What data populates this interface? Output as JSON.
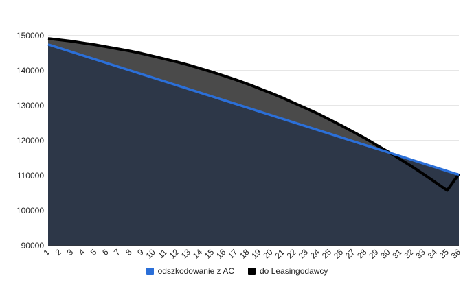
{
  "chart_data": {
    "type": "area",
    "title": "",
    "xlabel": "",
    "ylabel": "",
    "ylim": [
      90000,
      150000
    ],
    "yticks": [
      "90000",
      "100000",
      "110000",
      "120000",
      "130000",
      "140000",
      "150000"
    ],
    "x": [
      1,
      2,
      3,
      4,
      5,
      6,
      7,
      8,
      9,
      10,
      11,
      12,
      13,
      14,
      15,
      16,
      17,
      18,
      19,
      20,
      21,
      22,
      23,
      24,
      25,
      26,
      27,
      28,
      29,
      30,
      31,
      32,
      33,
      34,
      35,
      36
    ],
    "series": [
      {
        "name": "odszkodowanie z AC",
        "color": "#2b6fd8",
        "values": [
          147500,
          146440,
          145370,
          144310,
          143240,
          142180,
          141110,
          140050,
          138990,
          137920,
          136860,
          135790,
          134730,
          133660,
          132600,
          131540,
          130470,
          129410,
          128340,
          127280,
          126210,
          125150,
          124090,
          123020,
          121960,
          120890,
          119830,
          118760,
          117700,
          116640,
          115570,
          114510,
          113440,
          112380,
          111310,
          110250
        ]
      },
      {
        "name": "do Leasingodawcy",
        "color": "#000000",
        "values": [
          149200,
          148800,
          148400,
          147900,
          147400,
          146800,
          146200,
          145600,
          144900,
          144100,
          143300,
          142500,
          141600,
          140600,
          139600,
          138500,
          137400,
          136200,
          134900,
          133600,
          132200,
          130700,
          129200,
          127700,
          126000,
          124300,
          122500,
          120700,
          118700,
          116800,
          114700,
          112600,
          110400,
          108100,
          105800,
          110500
        ]
      }
    ],
    "fills": {
      "under_blue": "#2d3748",
      "between": "#4a4a4a"
    },
    "grid": true,
    "legend_position": "bottom"
  }
}
